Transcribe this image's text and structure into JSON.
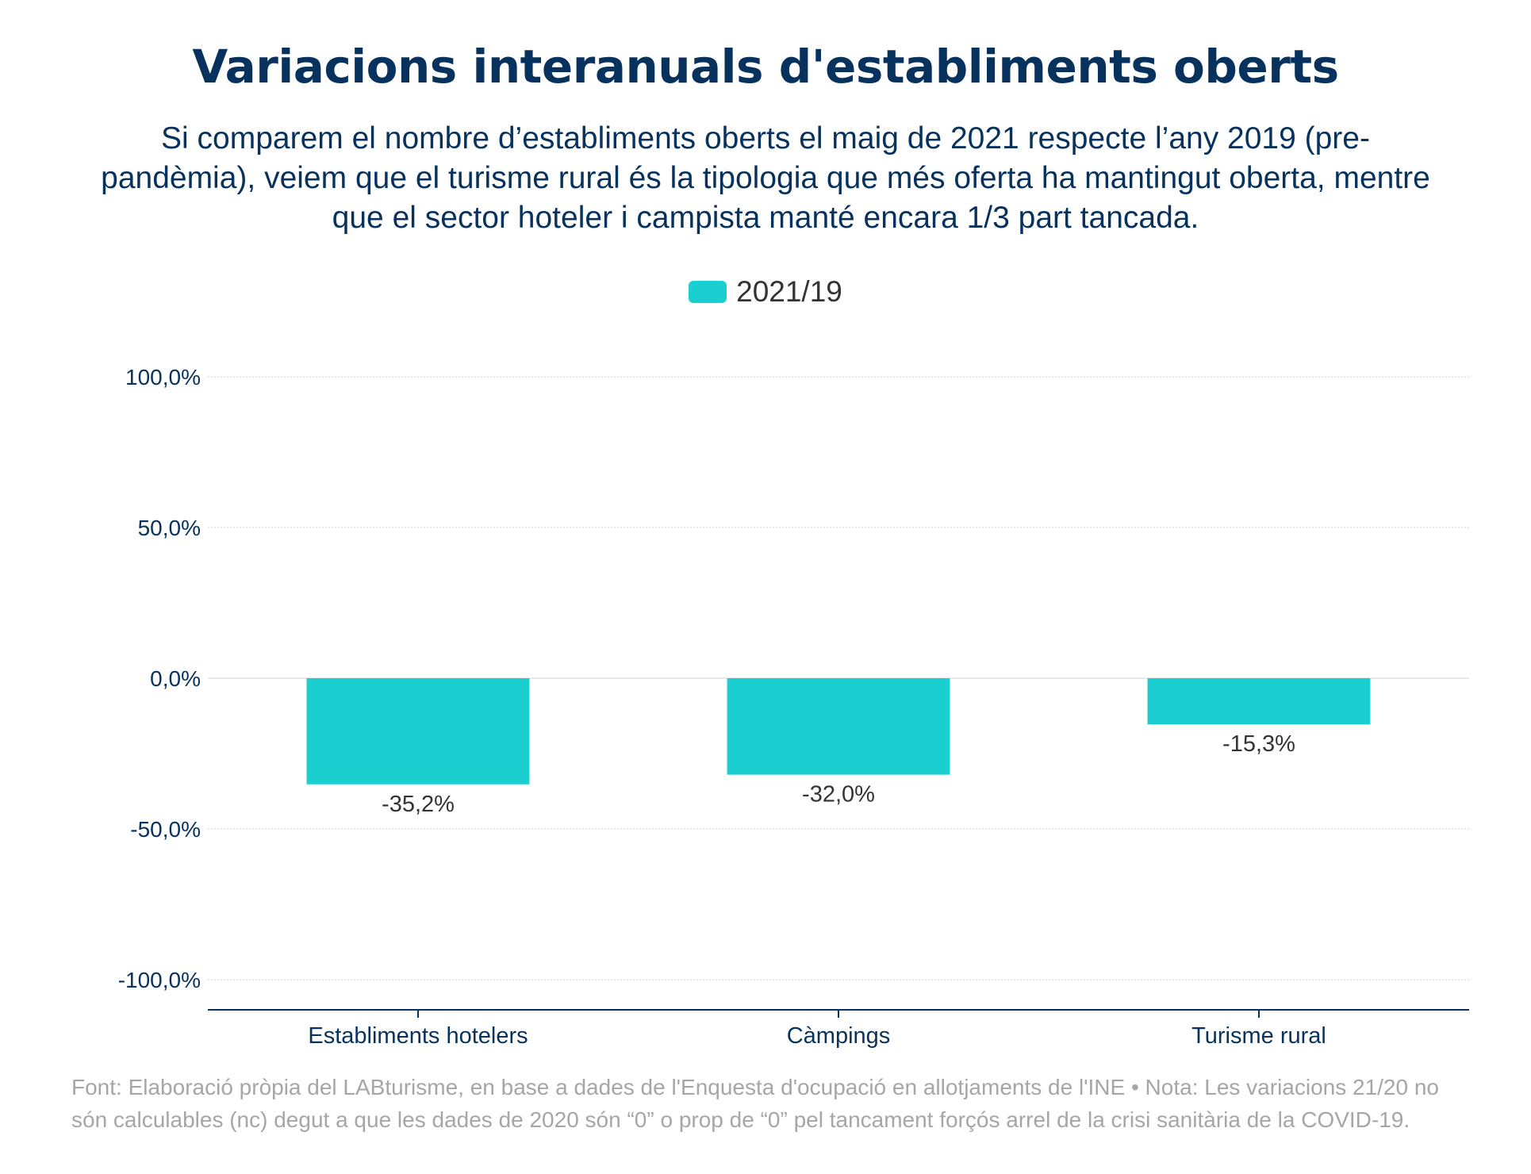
{
  "title": "Variacions interanuals d'establiments oberts",
  "subtitle": "Si comparem el nombre d’establiments oberts el maig de 2021 respecte l’any 2019 (pre-pandèmia), veiem que el turisme rural és la tipologia que més oferta ha mantingut oberta, mentre que el sector hoteler i campista manté encara 1/3 part tancada.",
  "footnote": "Font: Elaboració pròpia del LABturisme, en base a dades de l'Enquesta d'ocupació en allotjaments de l'INE • Nota: Les variacions 21/20 no són calculables (nc) degut a que les dades de 2020 són “0” o prop de “0” pel tancament forçós arrel de la crisi sanitària de la COVID-19.",
  "colors": {
    "bar": "#1bcfd1",
    "title": "#07325e",
    "axis_text": "#07325e",
    "grid": "#e0e0e0",
    "label_text": "#333333",
    "footnote": "#a6a6a6"
  },
  "chart_data": {
    "type": "bar",
    "title": "Variacions interanuals d'establiments oberts",
    "categories": [
      "Establiments hotelers",
      "Càmpings",
      "Turisme rural"
    ],
    "series": [
      {
        "name": "2021/19",
        "values": [
          -35.2,
          -32.0,
          -15.3
        ],
        "labels": [
          "-35,2%",
          "-32,0%",
          "-15,3%"
        ]
      }
    ],
    "ylim": [
      -110,
      100
    ],
    "yticks": [
      100,
      50,
      0,
      -50,
      -100
    ],
    "ytick_labels": [
      "100,0%",
      "50,0%",
      "0,0%",
      "-50,0%",
      "-100,0%"
    ],
    "grid": true,
    "legend": "top-center",
    "xlabel": "",
    "ylabel": ""
  }
}
